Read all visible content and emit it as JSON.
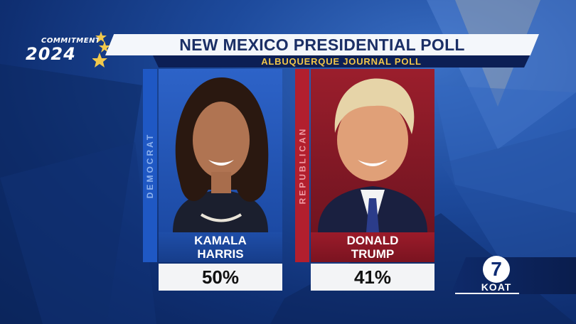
{
  "graphic": {
    "logo_top": "COMMITMENT",
    "logo_year": "2024",
    "title": "NEW MEXICO PRESIDENTIAL POLL",
    "subtitle": "ALBUQUERQUE JOURNAL POLL"
  },
  "candidates": [
    {
      "party": "DEMOCRAT",
      "name_line1": "KAMALA",
      "name_line2": "HARRIS",
      "percent": "50%",
      "color": "#1f58c4"
    },
    {
      "party": "REPUBLICAN",
      "name_line1": "DONALD",
      "name_line2": "TRUMP",
      "percent": "41%",
      "color": "#b21f2e"
    }
  ],
  "station": {
    "channel": "7",
    "call_sign": "KOAT"
  },
  "colors": {
    "background": "#1d4a9c",
    "title_text": "#1b2f66",
    "subtitle_text": "#f0c64a"
  }
}
